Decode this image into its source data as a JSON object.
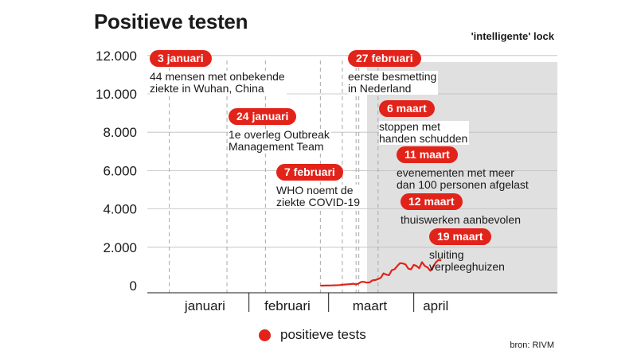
{
  "title": "Positieve testen",
  "lockdown_label": "'intelligente' lock",
  "events": [
    {
      "date": "3 januari",
      "text": [
        "44 mensen met onbekende",
        "ziekte in Wuhan, China"
      ]
    },
    {
      "date": "24 januari",
      "text": [
        "1e overleg Outbreak",
        "Management Team"
      ]
    },
    {
      "date": "7 februari",
      "text": [
        "WHO noemt de",
        "ziekte COVID-19"
      ]
    },
    {
      "date": "27 februari",
      "text": [
        "eerste besmetting",
        "in Nederland"
      ]
    },
    {
      "date": "6 maart",
      "text": [
        "stoppen met",
        "handen schudden"
      ]
    },
    {
      "date": "11 maart",
      "text": [
        "evenementen met meer",
        "dan 100 personen afgelast"
      ]
    },
    {
      "date": "12 maart",
      "text": [
        "thuiswerken aanbevolen"
      ]
    },
    {
      "date": "19 maart",
      "text": [
        "sluiting",
        "verpleeghuizen"
      ]
    }
  ],
  "legend": {
    "label": "positieve tests"
  },
  "source": "bron: RIVM",
  "colors": {
    "series": "#e2231a",
    "lockdown_shade": "#e0e0e0",
    "grid": "#bdbdbd"
  },
  "chart_data": {
    "type": "line",
    "title": "Positieve testen",
    "ylim": [
      0,
      12000
    ],
    "yticks": [
      0,
      2000,
      4000,
      6000,
      8000,
      10000,
      12000
    ],
    "ytick_labels": [
      "0",
      "2.000",
      "4.000",
      "6.000",
      "8.000",
      "10.000",
      "12.000"
    ],
    "x_months": [
      "januari",
      "februari",
      "maart",
      "april"
    ],
    "event_dates": [
      "2020-01-03",
      "2020-01-24",
      "2020-02-07",
      "2020-02-27",
      "2020-03-06",
      "2020-03-11",
      "2020-03-12",
      "2020-03-19"
    ],
    "lockdown_start": "2020-03-15",
    "series": [
      {
        "name": "positieve tests",
        "x": [
          "2020-02-27",
          "2020-02-28",
          "2020-02-29",
          "2020-03-01",
          "2020-03-02",
          "2020-03-03",
          "2020-03-04",
          "2020-03-05",
          "2020-03-06",
          "2020-03-07",
          "2020-03-08",
          "2020-03-09",
          "2020-03-10",
          "2020-03-11",
          "2020-03-12",
          "2020-03-13",
          "2020-03-14",
          "2020-03-15",
          "2020-03-16",
          "2020-03-17",
          "2020-03-18",
          "2020-03-19",
          "2020-03-20",
          "2020-03-21",
          "2020-03-22",
          "2020-03-23",
          "2020-03-24",
          "2020-03-25",
          "2020-03-26",
          "2020-03-27",
          "2020-03-28",
          "2020-03-29",
          "2020-03-30",
          "2020-03-31",
          "2020-04-01",
          "2020-04-02",
          "2020-04-03",
          "2020-04-04",
          "2020-04-05",
          "2020-04-06",
          "2020-04-07",
          "2020-04-08",
          "2020-04-09",
          "2020-04-10",
          "2020-04-11"
        ],
        "values": [
          1,
          1,
          5,
          3,
          8,
          15,
          20,
          28,
          45,
          60,
          70,
          80,
          100,
          60,
          120,
          200,
          190,
          155,
          175,
          278,
          292,
          346,
          409,
          637,
          573,
          545,
          811,
          852,
          1019,
          1172,
          1159,
          1104,
          884,
          845,
          1083,
          1026,
          904,
          1224,
          1023,
          952,
          777,
          969,
          1213,
          1335,
          1316
        ]
      }
    ]
  }
}
